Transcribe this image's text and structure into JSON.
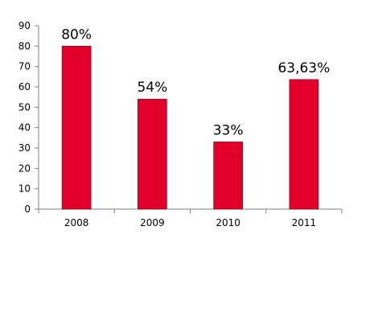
{
  "chart_data": {
    "type": "bar",
    "categories": [
      "2008",
      "2009",
      "2010",
      "2011"
    ],
    "values": [
      80,
      54,
      33,
      63.63
    ],
    "data_labels": [
      "80%",
      "54%",
      "33%",
      "63,63%"
    ],
    "y_ticks": [
      "0",
      "10",
      "20",
      "30",
      "40",
      "50",
      "60",
      "70",
      "80",
      "90"
    ],
    "ylim": [
      0,
      90
    ],
    "grid": false,
    "legend": "none",
    "colors": {
      "bar_fill": "#e2002a",
      "bar_stroke": "#7a0015",
      "axis": "#7f7f7f"
    }
  }
}
